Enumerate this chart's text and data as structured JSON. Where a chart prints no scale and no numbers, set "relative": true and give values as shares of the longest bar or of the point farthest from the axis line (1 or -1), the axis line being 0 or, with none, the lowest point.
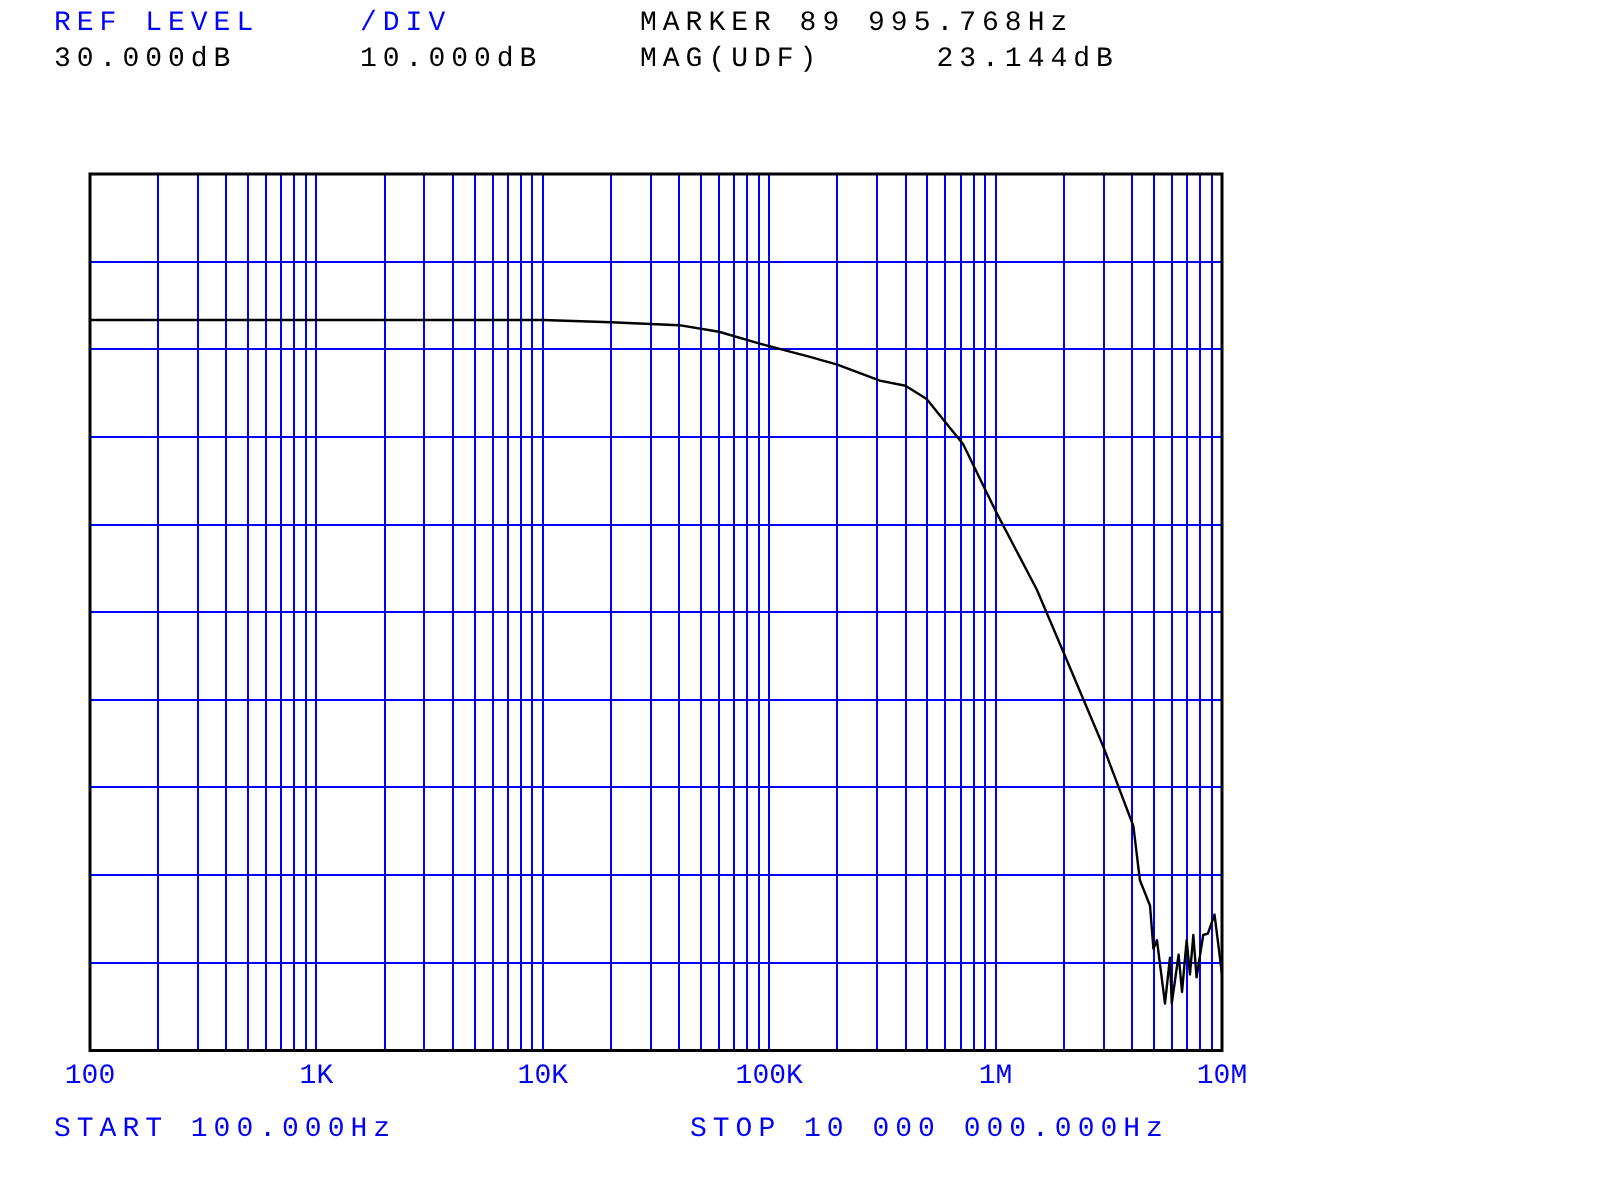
{
  "chart_data": {
    "type": "line",
    "annotations": [
      "REF LEVEL",
      "/DIV",
      "MARKER 89 995.768Hz",
      "30.000dB",
      "10.000dB",
      "MAG(UDF)     23.144dB",
      "START 100.000Hz",
      "STOP 10 000 000.000Hz"
    ],
    "x": [
      100,
      1000,
      10000,
      20000,
      40000,
      60000,
      89995.768,
      150000,
      200000,
      308000,
      400000,
      496000,
      719000,
      1010000,
      1520000,
      2020000,
      2990000,
      4060000,
      4340000,
      4810000,
      4980000,
      5160000,
      5600000,
      5890000,
      6000000,
      6430000,
      6660000,
      6980000,
      7220000,
      7470000,
      7720000,
      8260000,
      8660000,
      9270000,
      10000000
    ],
    "series": [
      {
        "color": "#000000",
        "values": [
          1,
          1,
          1,
          0.997,
          0.993,
          0.984,
          0.968,
          0.95,
          0.939,
          0.917,
          0.91,
          0.892,
          0.83,
          0.736,
          0.631,
          0.541,
          0.416,
          0.307,
          0.233,
          0.198,
          0.139,
          0.151,
          0.064,
          0.127,
          0.064,
          0.131,
          0.08,
          0.151,
          0.104,
          0.158,
          0.1,
          0.158,
          0.16,
          0.186,
          0.104
        ]
      }
    ],
    "relative": true,
    "log": "x",
    "grid": true,
    "tick_labels": "x",
    "marker": "none",
    "line_style": "solid",
    "xlim": [
      100,
      10000000
    ],
    "xticks": [
      {
        "value": 100,
        "label": "100"
      },
      {
        "value": 200,
        "label": null
      },
      {
        "value": 300,
        "label": null
      },
      {
        "value": 400,
        "label": null
      },
      {
        "value": 500,
        "label": null
      },
      {
        "value": 600,
        "label": null
      },
      {
        "value": 700,
        "label": null
      },
      {
        "value": 800,
        "label": null
      },
      {
        "value": 900,
        "label": null
      },
      {
        "value": 1000,
        "label": "1K"
      },
      {
        "value": 2000,
        "label": null
      },
      {
        "value": 3000,
        "label": null
      },
      {
        "value": 4000,
        "label": null
      },
      {
        "value": 5000,
        "label": null
      },
      {
        "value": 6000,
        "label": null
      },
      {
        "value": 7000,
        "label": null
      },
      {
        "value": 8000,
        "label": null
      },
      {
        "value": 9000,
        "label": null
      },
      {
        "value": 10000,
        "label": "10K"
      },
      {
        "value": 20000,
        "label": null
      },
      {
        "value": 30000,
        "label": null
      },
      {
        "value": 40000,
        "label": null
      },
      {
        "value": 50000,
        "label": null
      },
      {
        "value": 60000,
        "label": null
      },
      {
        "value": 70000,
        "label": null
      },
      {
        "value": 80000,
        "label": null
      },
      {
        "value": 90000,
        "label": null
      },
      {
        "value": 100000,
        "label": "100K"
      },
      {
        "value": 200000,
        "label": null
      },
      {
        "value": 300000,
        "label": null
      },
      {
        "value": 400000,
        "label": null
      },
      {
        "value": 500000,
        "label": null
      },
      {
        "value": 600000,
        "label": null
      },
      {
        "value": 700000,
        "label": null
      },
      {
        "value": 800000,
        "label": null
      },
      {
        "value": 900000,
        "label": null
      },
      {
        "value": 1000000,
        "label": "1M"
      },
      {
        "value": 2000000,
        "label": null
      },
      {
        "value": 3000000,
        "label": null
      },
      {
        "value": 4000000,
        "label": null
      },
      {
        "value": 5000000,
        "label": null
      },
      {
        "value": 6000000,
        "label": null
      },
      {
        "value": 7000000,
        "label": null
      },
      {
        "value": 8000000,
        "label": null
      },
      {
        "value": 9000000,
        "label": null
      },
      {
        "value": 10000000,
        "label": "10M"
      }
    ]
  }
}
